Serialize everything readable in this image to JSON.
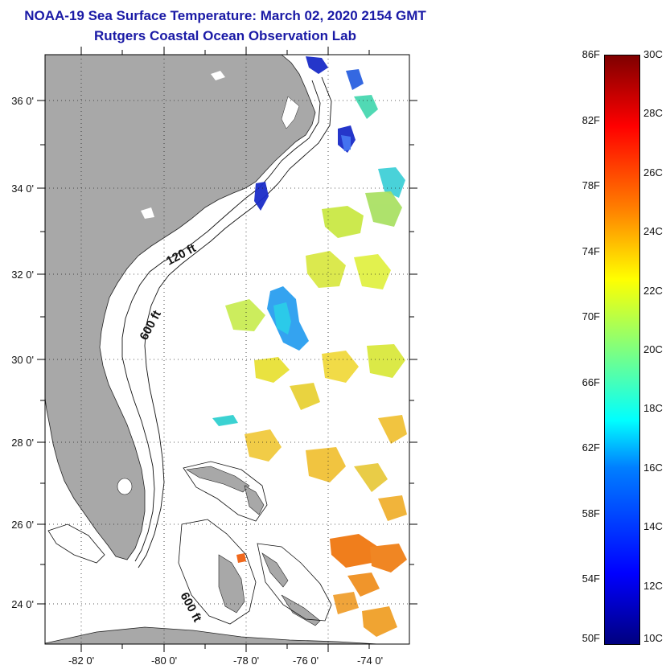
{
  "title": {
    "line1": "NOAA-19 Sea Surface Temperature:  March 02, 2020 2154 GMT",
    "line2": "Rutgers Coastal Ocean Observation Lab"
  },
  "map": {
    "lon_ticks": [
      "-82 0'",
      "-80 0'",
      "-78 0'",
      "-76 0'",
      "-74 0'"
    ],
    "lat_ticks": [
      "36 0'",
      "34 0'",
      "32 0'",
      "30 0'",
      "28 0'",
      "26 0'",
      "24 0'"
    ],
    "contour_labels": [
      "120 ft",
      "600 ft",
      "600 ft"
    ],
    "colors": {
      "land": "#a8a8a8",
      "ocean_no_data": "#ffffff",
      "frame": "#000000",
      "title": "#1a1aa6"
    }
  },
  "colorbar": {
    "fahrenheit_labels": [
      "86F",
      "82F",
      "78F",
      "74F",
      "70F",
      "66F",
      "62F",
      "58F",
      "54F",
      "50F"
    ],
    "celsius_labels": [
      "30C",
      "28C",
      "26C",
      "24C",
      "22C",
      "20C",
      "18C",
      "16C",
      "14C",
      "12C",
      "10C"
    ],
    "colormap": "jet",
    "range_celsius": [
      10,
      30
    ]
  }
}
